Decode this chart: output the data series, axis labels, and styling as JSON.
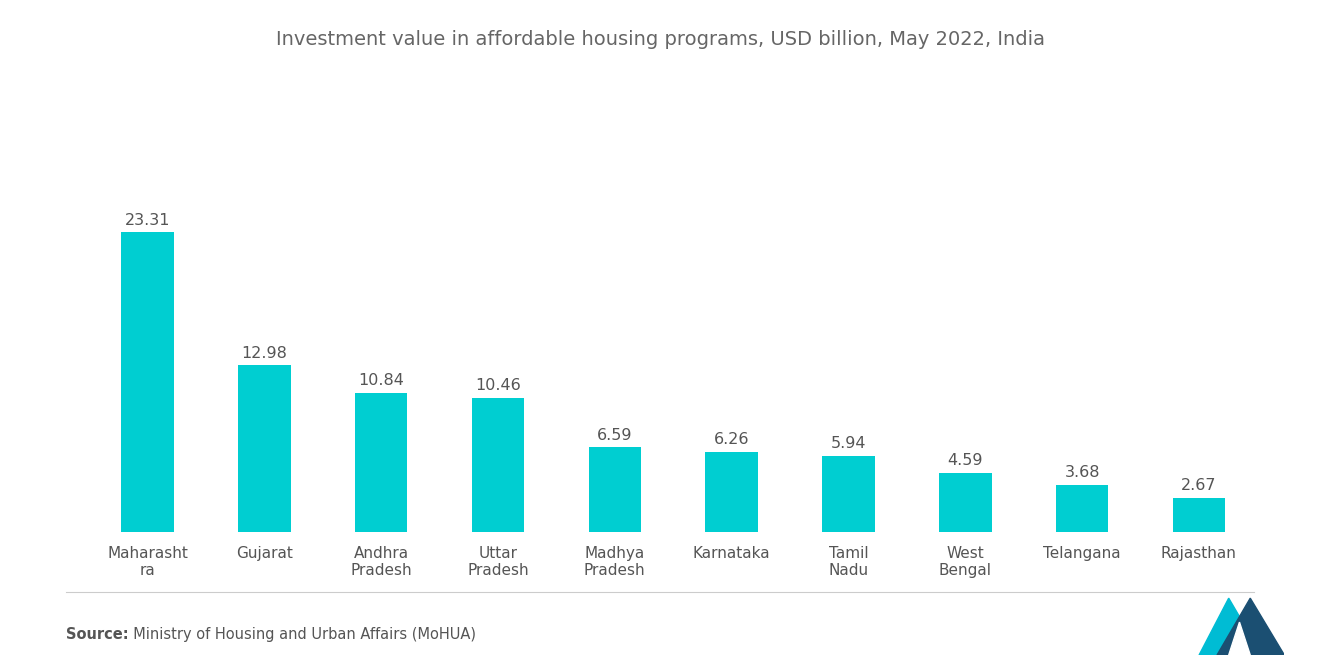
{
  "title": "Investment value in affordable housing programs, USD billion, May 2022, India",
  "categories": [
    "Maharasht\nra",
    "Gujarat",
    "Andhra\nPradesh",
    "Uttar\nPradesh",
    "Madhya\nPradesh",
    "Karnataka",
    "Tamil\nNadu",
    "West\nBengal",
    "Telangana",
    "Rajasthan"
  ],
  "values": [
    23.31,
    12.98,
    10.84,
    10.46,
    6.59,
    6.26,
    5.94,
    4.59,
    3.68,
    2.67
  ],
  "bar_color": "#00CED1",
  "background_color": "#ffffff",
  "title_color": "#666666",
  "label_color": "#555555",
  "source_bold": "Source:",
  "source_text": "  Ministry of Housing and Urban Affairs (MoHUA)",
  "title_fontsize": 14,
  "label_fontsize": 11,
  "value_fontsize": 11.5,
  "source_fontsize": 10.5,
  "ylim": [
    0,
    30
  ],
  "bar_width": 0.45
}
